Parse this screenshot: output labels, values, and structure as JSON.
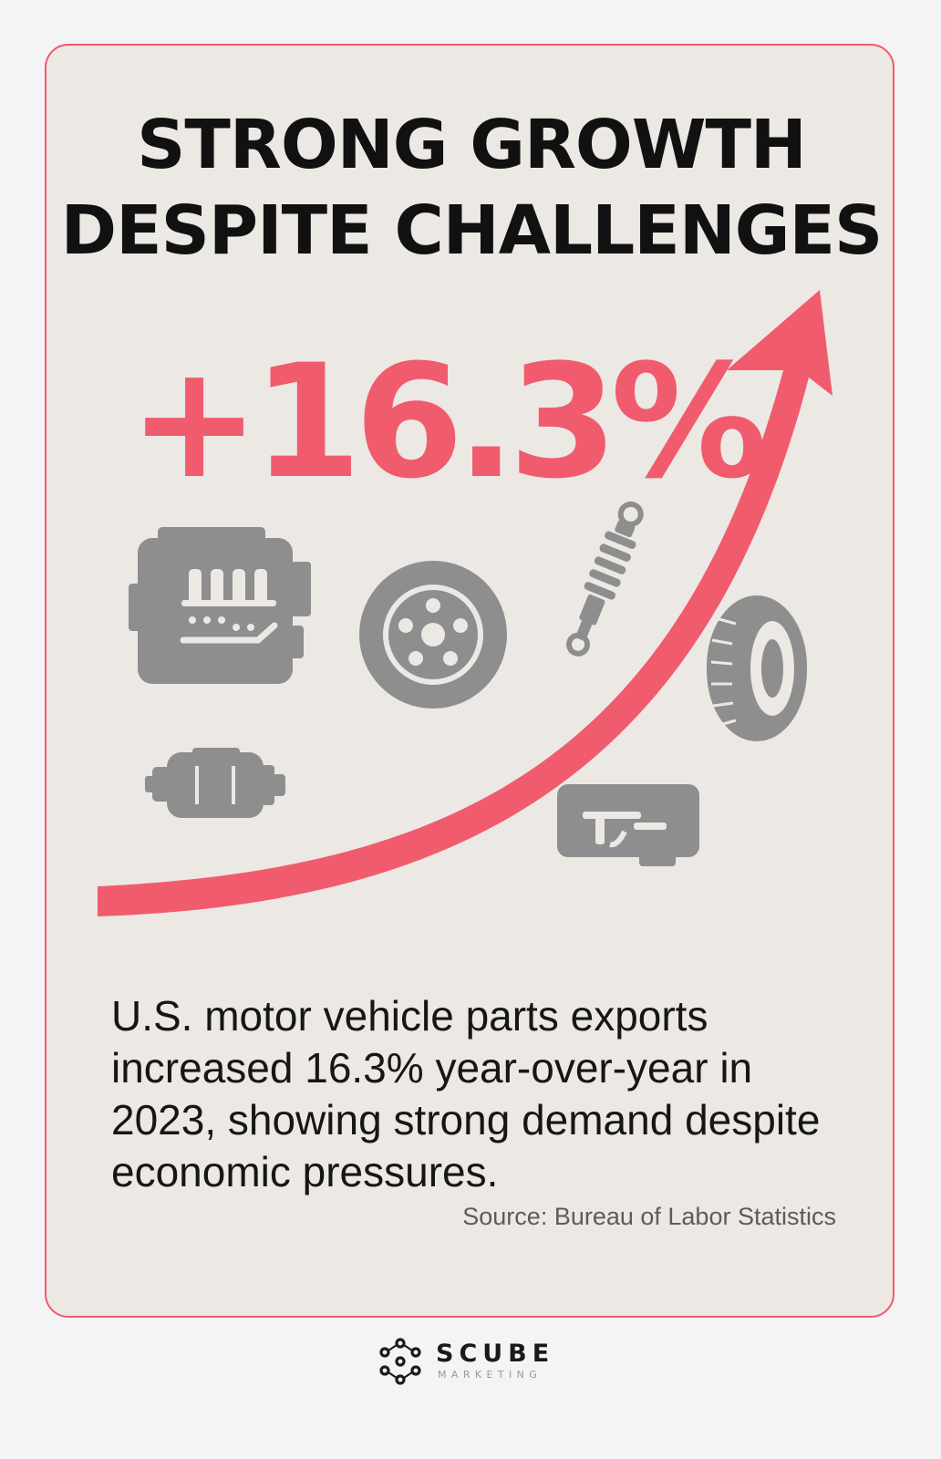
{
  "card": {
    "title_line1": "STRONG GROWTH",
    "title_line2": "DESPITE CHALLENGES",
    "stat": "+16.3%",
    "description": "U.S. motor vehicle parts exports increased 16.3% year-over-year in 2023, showing strong demand despite economic pressures.",
    "source": "Source: Bureau of Labor Statistics"
  },
  "brand": {
    "name": "SCUBE",
    "tagline": "MARKETING"
  },
  "icons": [
    "engine-icon",
    "wheel-icon",
    "shock-absorber-icon",
    "tire-icon",
    "alternator-icon",
    "transmission-icon",
    "growth-arrow-icon",
    "scube-logo-icon"
  ],
  "colors": {
    "accent": "#f05c6e",
    "card_border": "#ef5a6c",
    "card_background": "#ece8e4",
    "page_background": "#f4f3f5",
    "icon_gray": "#8e8e8e",
    "title_text": "#111111"
  }
}
